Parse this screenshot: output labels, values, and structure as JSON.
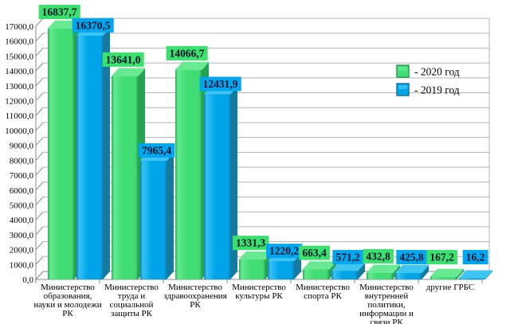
{
  "chart_data": {
    "type": "bar",
    "projection": "3d",
    "title": "",
    "grid": true,
    "legend_position": "right-top",
    "decimal_separator": ",",
    "categories": [
      "Министерство\nобразования,\nнауки и молодежи\nРК",
      "Министерство\nтруда и\nсоциальной\nзащиты РК",
      "Министерство\nздравоохранения\nРК",
      "Министерство\nкультуры РК",
      "Министерство\nспорта РК",
      "Министерство\nвнутренней\nполитики,\nинформации и\nсвязи РК",
      "другие ГРБС"
    ],
    "series": [
      {
        "name": "2020 год",
        "legend_label": "- 2020 год",
        "values": [
          16837.7,
          13641.0,
          14066.7,
          1331.3,
          663.4,
          432.8,
          167.2
        ],
        "color": "#41dd74",
        "color_light": "#63ea90",
        "color_dark": "#2cab58",
        "color_top": "#68e992",
        "color_side": "#27a251",
        "label_bg": "#3be06d"
      },
      {
        "name": "2019 год",
        "legend_label": "- 2019 год",
        "values": [
          16370.5,
          7965.4,
          12431.9,
          1220.2,
          571.2,
          425.8,
          16.2
        ],
        "color": "#00a4e9",
        "color_light": "#36c1f3",
        "color_dark": "#0d82be",
        "color_top": "#3ec5f2",
        "color_side": "#16799e",
        "label_bg": "#00a7ee"
      }
    ],
    "y_axis": {
      "min": 0,
      "max": 17000,
      "step": 1000
    },
    "colors": {
      "grid": "#b3b3b3",
      "axis": "#8a8a8a",
      "text": "#000000",
      "value_label_text": "#00122e",
      "background": "#ffffff"
    }
  }
}
